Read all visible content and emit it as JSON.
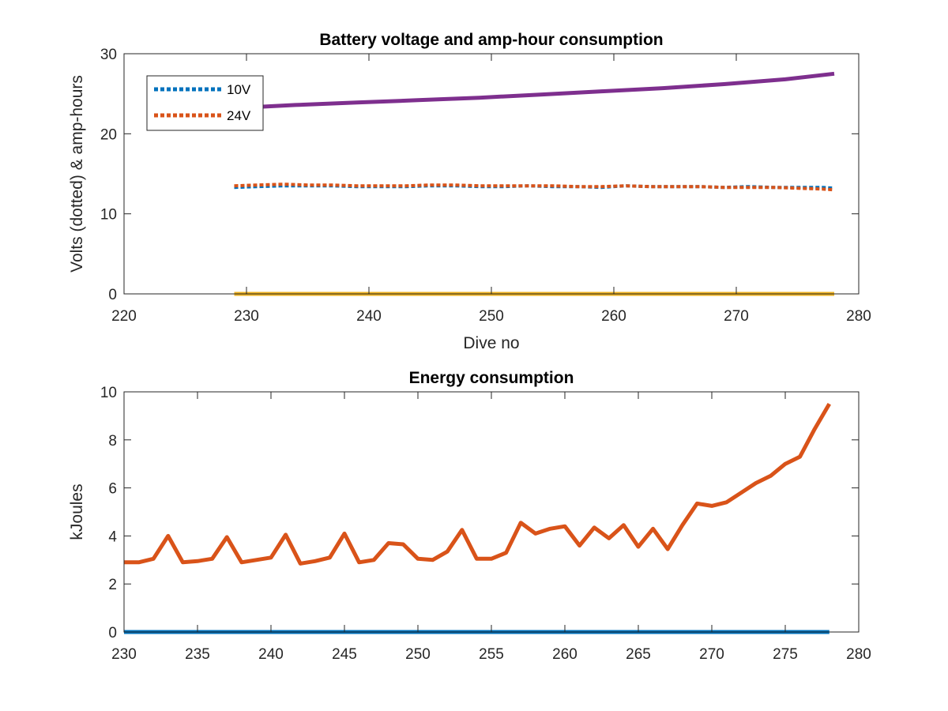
{
  "chart_data": [
    {
      "type": "line",
      "title": "Battery voltage and amp-hour consumption",
      "xlabel": "Dive no",
      "ylabel": "Volts (dotted) & amp-hours",
      "xlim": [
        220,
        280
      ],
      "ylim": [
        0,
        30
      ],
      "xticks": [
        "220",
        "230",
        "240",
        "250",
        "260",
        "270",
        "280"
      ],
      "yticks": [
        "0",
        "10",
        "20",
        "30"
      ],
      "grid": false,
      "legend_position": "top-left",
      "series": [
        {
          "name": "10V",
          "style": "dotted",
          "color": "#0072BD",
          "x": [
            229,
            231,
            233,
            235,
            237,
            239,
            241,
            243,
            245,
            247,
            249,
            251,
            253,
            255,
            257,
            259,
            261,
            263,
            265,
            267,
            269,
            271,
            273,
            275,
            277,
            278
          ],
          "y": [
            13.3,
            13.4,
            13.5,
            13.5,
            13.5,
            13.4,
            13.4,
            13.4,
            13.5,
            13.5,
            13.4,
            13.4,
            13.5,
            13.4,
            13.4,
            13.3,
            13.5,
            13.4,
            13.4,
            13.4,
            13.3,
            13.4,
            13.3,
            13.3,
            13.3,
            13.2
          ]
        },
        {
          "name": "24V",
          "style": "dotted",
          "color": "#D95319",
          "x": [
            229,
            231,
            233,
            235,
            237,
            239,
            241,
            243,
            245,
            247,
            249,
            251,
            253,
            255,
            257,
            259,
            261,
            263,
            265,
            267,
            269,
            271,
            273,
            275,
            277,
            278
          ],
          "y": [
            13.5,
            13.6,
            13.7,
            13.6,
            13.6,
            13.5,
            13.5,
            13.5,
            13.6,
            13.6,
            13.5,
            13.5,
            13.5,
            13.5,
            13.4,
            13.4,
            13.5,
            13.4,
            13.4,
            13.4,
            13.3,
            13.3,
            13.3,
            13.2,
            13.1,
            13.0
          ]
        },
        {
          "style": "solid",
          "color": "#7E2F8E",
          "x": [
            229,
            234,
            239,
            244,
            249,
            254,
            259,
            264,
            269,
            274,
            278
          ],
          "y": [
            23.2,
            23.6,
            23.9,
            24.2,
            24.5,
            24.9,
            25.3,
            25.7,
            26.2,
            26.8,
            27.5
          ]
        },
        {
          "style": "solid",
          "color": "#EDB120",
          "x": [
            229,
            278
          ],
          "y": [
            0,
            0
          ]
        }
      ]
    },
    {
      "type": "line",
      "title": "Energy consumption",
      "xlabel": "",
      "ylabel": "kJoules",
      "xlim": [
        230,
        280
      ],
      "ylim": [
        0,
        10
      ],
      "xticks": [
        "230",
        "235",
        "240",
        "245",
        "250",
        "255",
        "260",
        "265",
        "270",
        "275",
        "280"
      ],
      "yticks": [
        "0",
        "2",
        "4",
        "6",
        "8",
        "10"
      ],
      "grid": false,
      "series": [
        {
          "style": "solid",
          "color": "#D95319",
          "x": [
            230,
            231,
            232,
            233,
            234,
            235,
            236,
            237,
            238,
            239,
            240,
            241,
            242,
            243,
            244,
            245,
            246,
            247,
            248,
            249,
            250,
            251,
            252,
            253,
            254,
            255,
            256,
            257,
            258,
            259,
            260,
            261,
            262,
            263,
            264,
            265,
            266,
            267,
            268,
            269,
            270,
            271,
            272,
            273,
            274,
            275,
            276,
            277,
            278
          ],
          "y": [
            2.9,
            2.9,
            3.05,
            4.0,
            2.9,
            2.95,
            3.05,
            3.95,
            2.9,
            3.0,
            3.1,
            4.05,
            2.85,
            2.95,
            3.1,
            4.1,
            2.9,
            3.0,
            3.7,
            3.65,
            3.05,
            3.0,
            3.35,
            4.25,
            3.05,
            3.05,
            3.3,
            4.55,
            4.1,
            4.3,
            4.4,
            3.6,
            4.35,
            3.9,
            4.45,
            3.55,
            4.3,
            3.45,
            4.45,
            5.35,
            5.25,
            5.4,
            5.8,
            6.2,
            6.5,
            7.0,
            7.3,
            8.45,
            9.5
          ]
        },
        {
          "style": "solid",
          "color": "#0072BD",
          "x": [
            230,
            278
          ],
          "y": [
            0,
            0
          ]
        }
      ]
    }
  ]
}
